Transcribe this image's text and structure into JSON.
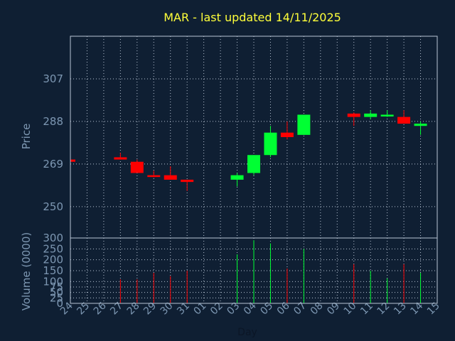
{
  "chart_data": {
    "type": "candlestick",
    "title": "MAR - last updated 14/11/2025",
    "xlabel": "Day",
    "colors": {
      "up": "#00ff33",
      "down": "#ff0000",
      "background": "#0f1f33",
      "text": "#7d97b2",
      "title": "#ffff3a"
    },
    "x_ticks": [
      "24",
      "25",
      "26",
      "27",
      "28",
      "29",
      "30",
      "31",
      "01",
      "02",
      "03",
      "04",
      "05",
      "06",
      "07",
      "08",
      "09",
      "10",
      "11",
      "12",
      "13",
      "14",
      "15"
    ],
    "price_panel": {
      "ylabel": "Price",
      "ylim": [
        236,
        326
      ],
      "y_ticks": [
        250,
        269,
        288,
        307
      ]
    },
    "volume_panel": {
      "ylabel": "Volume (0000)",
      "ylim": [
        0,
        300
      ],
      "y_ticks": [
        0,
        25,
        50,
        75,
        100,
        150,
        200,
        250,
        300
      ]
    },
    "candles": [
      {
        "day": "24",
        "open": 271,
        "high": 271,
        "low": 270,
        "close": 270,
        "volume": 0
      },
      {
        "day": "27",
        "open": 272,
        "high": 274,
        "low": 271,
        "close": 271,
        "volume": 110
      },
      {
        "day": "28",
        "open": 270,
        "high": 271,
        "low": 265,
        "close": 265,
        "volume": 110
      },
      {
        "day": "29",
        "open": 264,
        "high": 266,
        "low": 263,
        "close": 263.5,
        "volume": 140
      },
      {
        "day": "30",
        "open": 264,
        "high": 268,
        "low": 262,
        "close": 262,
        "volume": 125
      },
      {
        "day": "31",
        "open": 262,
        "high": 262,
        "low": 257,
        "close": 261,
        "volume": 150
      },
      {
        "day": "03",
        "open": 262,
        "high": 265,
        "low": 259,
        "close": 264,
        "volume": 225
      },
      {
        "day": "04",
        "open": 265,
        "high": 273,
        "low": 264,
        "close": 273,
        "volume": 290
      },
      {
        "day": "05",
        "open": 273,
        "high": 286,
        "low": 272,
        "close": 283,
        "volume": 275
      },
      {
        "day": "06",
        "open": 283,
        "high": 288,
        "low": 280,
        "close": 281,
        "volume": 160
      },
      {
        "day": "07",
        "open": 282,
        "high": 291,
        "low": 282,
        "close": 291,
        "volume": 250
      },
      {
        "day": "10",
        "open": 291.5,
        "high": 292,
        "low": 286,
        "close": 290,
        "volume": 180
      },
      {
        "day": "11",
        "open": 290,
        "high": 293,
        "low": 289,
        "close": 291.5,
        "volume": 150
      },
      {
        "day": "12",
        "open": 290.5,
        "high": 293,
        "low": 290,
        "close": 291,
        "volume": 115
      },
      {
        "day": "13",
        "open": 290,
        "high": 293,
        "low": 287,
        "close": 287,
        "volume": 180
      },
      {
        "day": "14",
        "open": 286,
        "high": 288,
        "low": 282,
        "close": 287,
        "volume": 140
      }
    ]
  }
}
